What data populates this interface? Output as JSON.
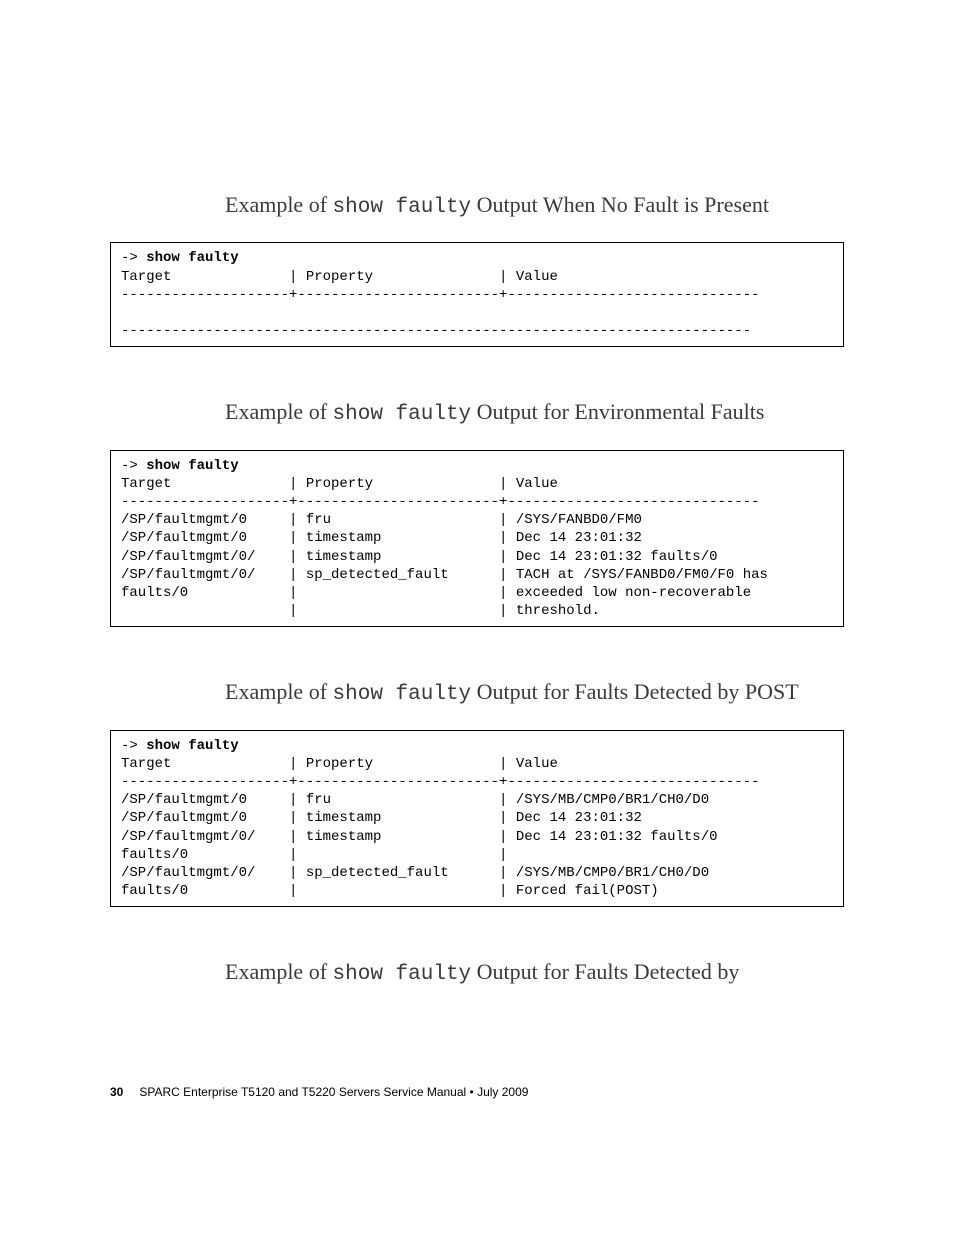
{
  "sections": [
    {
      "heading_pre": "Example of ",
      "heading_cmd": "show faulty",
      "heading_post": " Output When No Fault is Present",
      "command_arrow": "-> ",
      "command": "show faulty",
      "header_row": "Target              | Property               | Value",
      "divider1": "--------------------+------------------------+------------------------------",
      "rows": [],
      "divider2": "---------------------------------------------------------------------------"
    },
    {
      "heading_pre": "Example of ",
      "heading_cmd": "show faulty",
      "heading_post": " Output for Environmental Faults",
      "command_arrow": "-> ",
      "command": "show faulty",
      "header_row": "Target              | Property               | Value",
      "divider1": "--------------------+------------------------+------------------------------",
      "rows": [
        "/SP/faultmgmt/0     | fru                    | /SYS/FANBD0/FM0",
        "/SP/faultmgmt/0     | timestamp              | Dec 14 23:01:32",
        "/SP/faultmgmt/0/    | timestamp              | Dec 14 23:01:32 faults/0",
        "/SP/faultmgmt/0/    | sp_detected_fault      | TACH at /SYS/FANBD0/FM0/F0 has",
        "faults/0            |                        | exceeded low non-recoverable",
        "                    |                        | threshold."
      ]
    },
    {
      "heading_pre": "Example of ",
      "heading_cmd": "show faulty",
      "heading_post": " Output for Faults Detected by POST",
      "command_arrow": "-> ",
      "command": "show faulty",
      "header_row": "Target              | Property               | Value",
      "divider1": "--------------------+------------------------+------------------------------",
      "rows": [
        "/SP/faultmgmt/0     | fru                    | /SYS/MB/CMP0/BR1/CH0/D0",
        "/SP/faultmgmt/0     | timestamp              | Dec 14 23:01:32",
        "/SP/faultmgmt/0/    | timestamp              | Dec 14 23:01:32 faults/0",
        "faults/0            |                        |",
        "/SP/faultmgmt/0/    | sp_detected_fault      | /SYS/MB/CMP0/BR1/CH0/D0",
        "faults/0            |                        | Forced fail(POST)"
      ]
    }
  ],
  "last_heading": {
    "heading_pre": "Example of ",
    "heading_cmd": "show faulty",
    "heading_post": " Output for Faults Detected by"
  },
  "footer": {
    "page_no": "30",
    "title": "SPARC Enterprise T5120 and T5220 Servers Service Manual  •  July 2009"
  }
}
